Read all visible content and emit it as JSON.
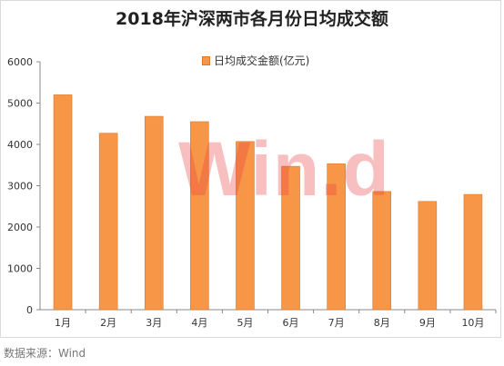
{
  "title": "2018年沪深两市各月份日均成交额",
  "source": "数据来源：Wind",
  "watermark": "Win.d",
  "chart_data": {
    "type": "bar",
    "title": "2018年沪深两市各月份日均成交额",
    "categories": [
      "1月",
      "2月",
      "3月",
      "4月",
      "5月",
      "6月",
      "7月",
      "8月",
      "9月",
      "10月"
    ],
    "series": [
      {
        "name": "日均成交金额(亿元)",
        "color": "#f79646",
        "values": [
          5200,
          4270,
          4680,
          4550,
          4070,
          3470,
          3530,
          2860,
          2620,
          2790
        ]
      }
    ],
    "ylim": [
      0,
      6000
    ],
    "yticks": [
      0,
      1000,
      2000,
      3000,
      4000,
      5000,
      6000
    ],
    "xlabel": "",
    "ylabel": "",
    "grid": false,
    "legend_position": "top-center"
  }
}
